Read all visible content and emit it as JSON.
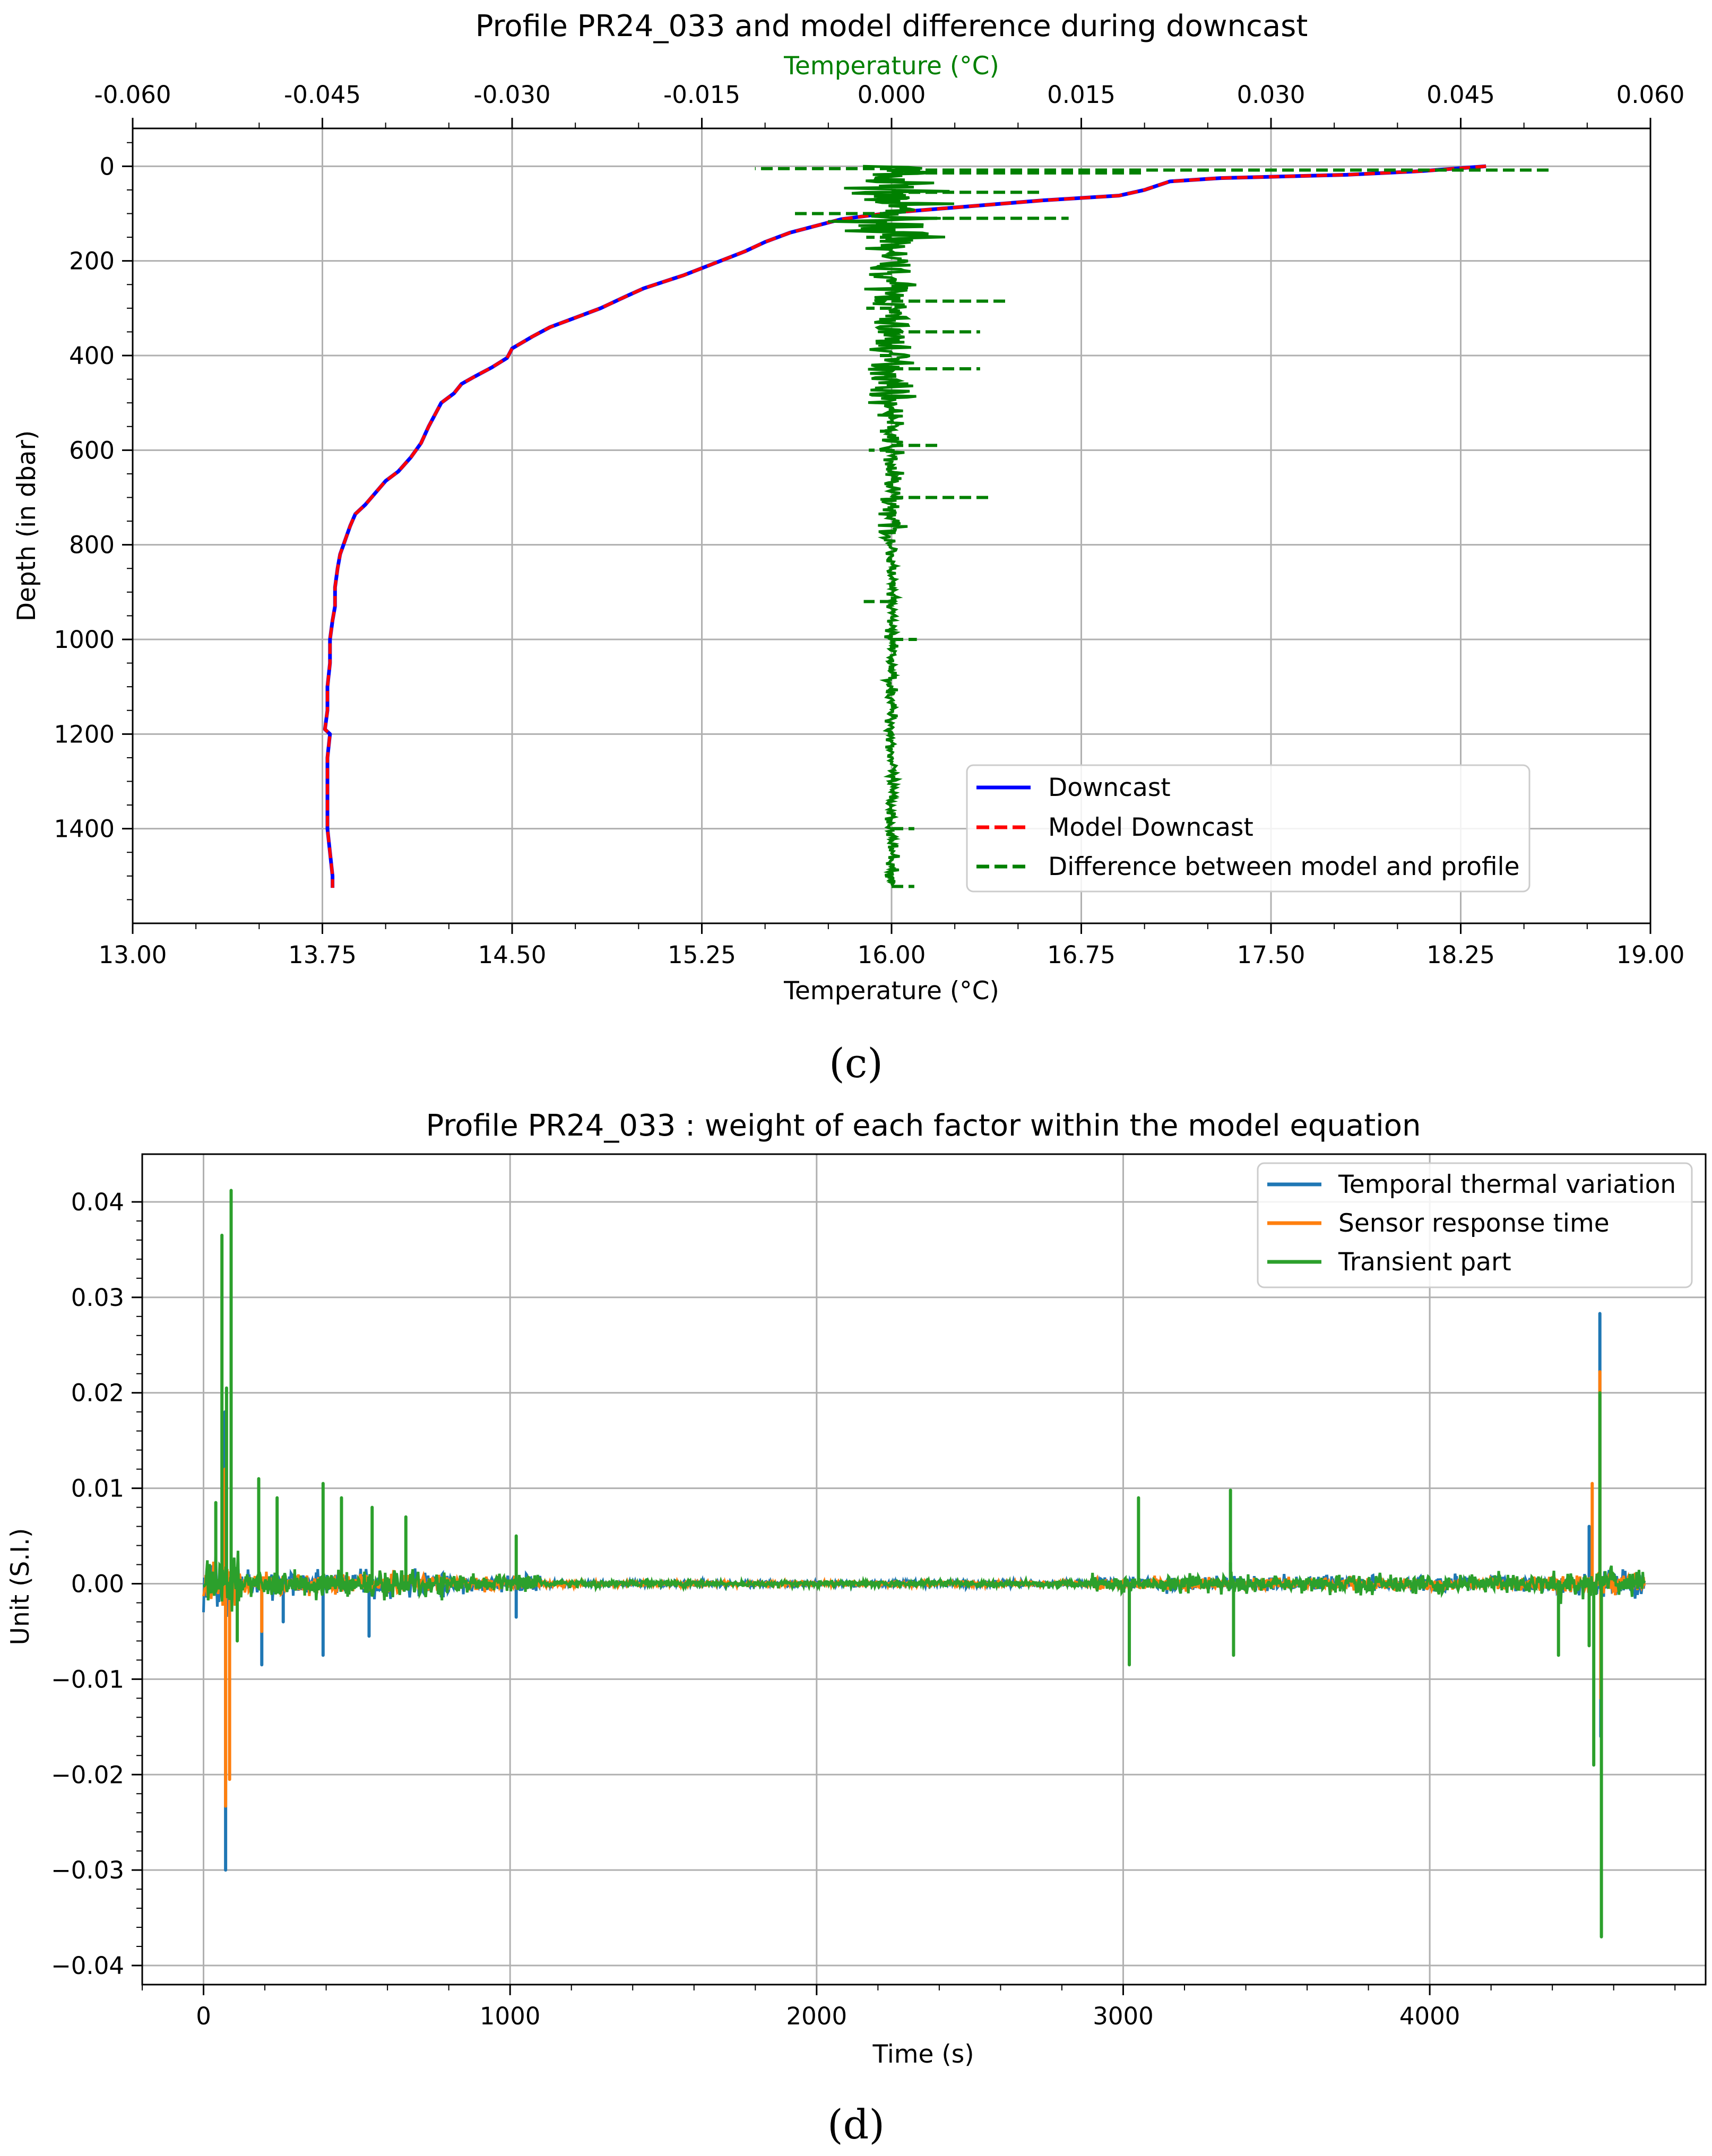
{
  "chart_data": [
    {
      "panel_label": "(c)",
      "type": "line",
      "title": "Profile PR24_033 and model difference during downcast",
      "xlabel": "Temperature (°C)",
      "xlim": [
        13.0,
        19.0
      ],
      "xticks": [
        "13.00",
        "13.75",
        "14.50",
        "15.25",
        "16.00",
        "16.75",
        "17.50",
        "18.25",
        "19.00"
      ],
      "secondary_xlabel": "Temperature (°C)",
      "secondary_xlim": [
        -0.06,
        0.06
      ],
      "secondary_xticks": [
        "-0.060",
        "-0.045",
        "-0.030",
        "-0.015",
        "0.000",
        "0.015",
        "0.030",
        "0.045",
        "0.060"
      ],
      "ylabel": "Depth (in dbar)",
      "ylim": [
        1600,
        -80
      ],
      "yticks": [
        "0",
        "200",
        "400",
        "600",
        "800",
        "1000",
        "1200",
        "1400"
      ],
      "grid": true,
      "legend_position": "lower-right",
      "series": [
        {
          "name": "Downcast",
          "color": "#0000ff",
          "style": "solid",
          "axis": "primary",
          "points": [
            [
              18.35,
              0
            ],
            [
              18.1,
              10
            ],
            [
              17.8,
              18
            ],
            [
              17.3,
              25
            ],
            [
              17.1,
              32
            ],
            [
              17.0,
              50
            ],
            [
              16.9,
              62
            ],
            [
              16.6,
              72
            ],
            [
              16.3,
              85
            ],
            [
              16.0,
              98
            ],
            [
              15.8,
              112
            ],
            [
              15.6,
              140
            ],
            [
              15.5,
              160
            ],
            [
              15.42,
              180
            ],
            [
              15.3,
              205
            ],
            [
              15.18,
              230
            ],
            [
              15.02,
              258
            ],
            [
              14.95,
              275
            ],
            [
              14.85,
              300
            ],
            [
              14.75,
              320
            ],
            [
              14.65,
              340
            ],
            [
              14.58,
              360
            ],
            [
              14.5,
              385
            ],
            [
              14.48,
              405
            ],
            [
              14.42,
              425
            ],
            [
              14.35,
              445
            ],
            [
              14.3,
              460
            ],
            [
              14.27,
              480
            ],
            [
              14.22,
              500
            ],
            [
              14.2,
              520
            ],
            [
              14.17,
              550
            ],
            [
              14.14,
              585
            ],
            [
              14.1,
              615
            ],
            [
              14.05,
              645
            ],
            [
              14.0,
              665
            ],
            [
              13.96,
              690
            ],
            [
              13.92,
              715
            ],
            [
              13.88,
              735
            ],
            [
              13.86,
              760
            ],
            [
              13.84,
              790
            ],
            [
              13.82,
              820
            ],
            [
              13.81,
              850
            ],
            [
              13.8,
              890
            ],
            [
              13.8,
              930
            ],
            [
              13.79,
              960
            ],
            [
              13.78,
              1000
            ],
            [
              13.78,
              1050
            ],
            [
              13.77,
              1100
            ],
            [
              13.77,
              1150
            ],
            [
              13.76,
              1190
            ],
            [
              13.78,
              1200
            ],
            [
              13.77,
              1250
            ],
            [
              13.77,
              1300
            ],
            [
              13.77,
              1350
            ],
            [
              13.77,
              1400
            ],
            [
              13.78,
              1450
            ],
            [
              13.79,
              1500
            ],
            [
              13.79,
              1525
            ]
          ]
        },
        {
          "name": "Model Downcast",
          "color": "#ff0000",
          "style": "dashed",
          "axis": "primary",
          "same_as": "Downcast"
        },
        {
          "name": "Difference between model and profile",
          "color": "#008000",
          "style": "dashed",
          "axis": "secondary",
          "points": [
            [
              0.0,
              0
            ],
            [
              -0.0108,
              5
            ],
            [
              0.052,
              8
            ],
            [
              0.02,
              14
            ],
            [
              -0.001,
              30
            ],
            [
              0.012,
              55
            ],
            [
              -0.008,
              100
            ],
            [
              0.014,
              110
            ],
            [
              -0.002,
              150
            ],
            [
              0.0,
              230
            ],
            [
              0.009,
              285
            ],
            [
              -0.002,
              300
            ],
            [
              0.007,
              350
            ],
            [
              -0.001,
              400
            ],
            [
              0.007,
              428
            ],
            [
              0.0,
              470
            ],
            [
              -0.001,
              560
            ],
            [
              0.004,
              590
            ],
            [
              -0.0018,
              600
            ],
            [
              0.008,
              700
            ],
            [
              0.0,
              760
            ],
            [
              -0.0022,
              920
            ],
            [
              0.002,
              1000
            ],
            [
              -0.0003,
              1200
            ],
            [
              0.0018,
              1400
            ],
            [
              -0.0005,
              1500
            ],
            [
              0.0018,
              1522
            ]
          ]
        }
      ]
    },
    {
      "panel_label": "(d)",
      "type": "line",
      "title": "Profile PR24_033 : weight of each factor within the model equation",
      "xlabel": "Time (s)",
      "xlim": [
        -200,
        4900
      ],
      "xticks": [
        "0",
        "1000",
        "2000",
        "3000",
        "4000"
      ],
      "ylabel": "Unit (S.I.)",
      "ylim": [
        -0.042,
        0.045
      ],
      "yticks": [
        "0.04",
        "0.03",
        "0.02",
        "0.01",
        "0.00",
        "−0.01",
        "−0.02",
        "−0.03",
        "−0.04"
      ],
      "grid": true,
      "legend_position": "upper-right",
      "series": [
        {
          "name": "Temporal thermal variation",
          "color": "#1f77b4",
          "peaks": [
            [
              70,
              0.018
            ],
            [
              72,
              -0.03
            ],
            [
              190,
              -0.0085
            ],
            [
              260,
              -0.004
            ],
            [
              390,
              -0.0075
            ],
            [
              540,
              -0.0055
            ],
            [
              1020,
              -0.0035
            ],
            [
              3020,
              -0.0075
            ],
            [
              3350,
              0.0022
            ],
            [
              4520,
              0.006
            ],
            [
              4555,
              0.0283
            ],
            [
              4558,
              -0.016
            ]
          ]
        },
        {
          "name": "Sensor response time",
          "color": "#ff7f0e",
          "peaks": [
            [
              70,
              0.012
            ],
            [
              72,
              -0.0233
            ],
            [
              85,
              -0.0205
            ],
            [
              190,
              -0.005
            ],
            [
              3020,
              -0.005
            ],
            [
              4530,
              0.0105
            ],
            [
              4555,
              0.0222
            ],
            [
              4558,
              -0.012
            ]
          ]
        },
        {
          "name": "Transient part",
          "color": "#2ca02c",
          "peaks": [
            [
              40,
              0.0085
            ],
            [
              60,
              0.0365
            ],
            [
              75,
              0.0205
            ],
            [
              90,
              0.0412
            ],
            [
              110,
              -0.006
            ],
            [
              180,
              0.011
            ],
            [
              240,
              0.009
            ],
            [
              390,
              0.0105
            ],
            [
              450,
              0.009
            ],
            [
              550,
              0.008
            ],
            [
              660,
              0.007
            ],
            [
              1020,
              0.005
            ],
            [
              3020,
              -0.0085
            ],
            [
              3050,
              0.009
            ],
            [
              3350,
              0.0098
            ],
            [
              3360,
              -0.0075
            ],
            [
              4420,
              -0.0075
            ],
            [
              4520,
              -0.0065
            ],
            [
              4535,
              -0.019
            ],
            [
              4555,
              0.02
            ],
            [
              4560,
              -0.037
            ]
          ]
        }
      ]
    }
  ]
}
